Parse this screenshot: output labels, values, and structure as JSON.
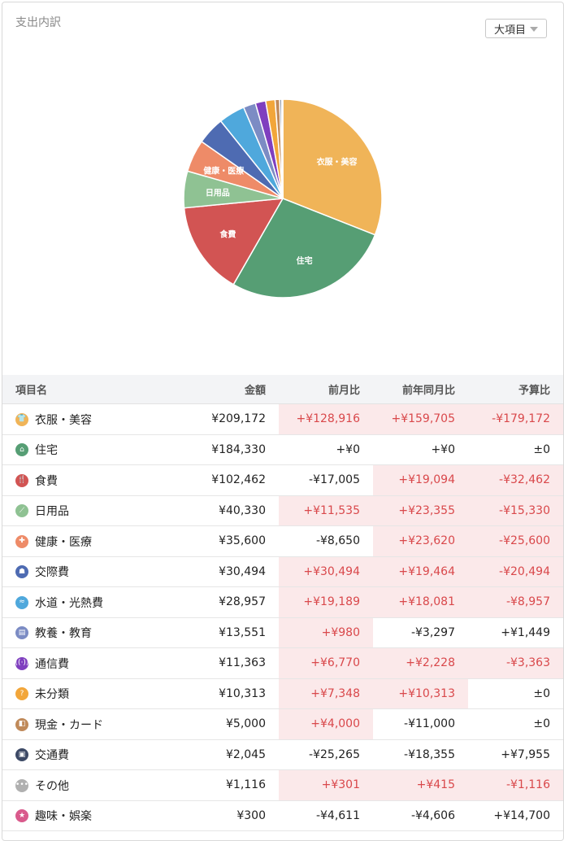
{
  "title": "支出内訳",
  "dropdown": {
    "value": "大項目"
  },
  "chart_data": {
    "type": "pie",
    "slices": [
      {
        "label": "衣服・美容",
        "value": 209172,
        "color": "#f0b458",
        "show_label": true
      },
      {
        "label": "住宅",
        "value": 184330,
        "color": "#569e74",
        "show_label": true
      },
      {
        "label": "食費",
        "value": 102462,
        "color": "#d25453",
        "show_label": true
      },
      {
        "label": "日用品",
        "value": 40330,
        "color": "#8fc293",
        "show_label": true
      },
      {
        "label": "健康・医療",
        "value": 35600,
        "color": "#ee8b68",
        "show_label": true
      },
      {
        "label": "交際費",
        "value": 30494,
        "color": "#4e6bb2",
        "show_label": false
      },
      {
        "label": "水道・光熱費",
        "value": 28957,
        "color": "#4fa8dc",
        "show_label": false
      },
      {
        "label": "教養・教育",
        "value": 13551,
        "color": "#7c8cc4",
        "show_label": false
      },
      {
        "label": "通信費",
        "value": 11363,
        "color": "#7f3fbf",
        "show_label": false
      },
      {
        "label": "未分類",
        "value": 10313,
        "color": "#f2a63a",
        "show_label": false
      },
      {
        "label": "現金・カード",
        "value": 5000,
        "color": "#c08a5a",
        "show_label": false
      },
      {
        "label": "交通費",
        "value": 2045,
        "color": "#3d4a66",
        "show_label": false
      },
      {
        "label": "その他",
        "value": 1116,
        "color": "#b0b0b0",
        "show_label": false
      },
      {
        "label": "趣味・娯楽",
        "value": 300,
        "color": "#d95a8c",
        "show_label": false
      }
    ]
  },
  "table": {
    "headers": {
      "name": "項目名",
      "amount": "金額",
      "mom": "前月比",
      "yoy": "前年同月比",
      "budget": "予算比"
    },
    "rows": [
      {
        "icon": "shirt-icon",
        "glyph": "👕",
        "color": "#f0b458",
        "name": "衣服・美容",
        "amount": "¥209,172",
        "mom": "+¥128,916",
        "mom_neg": true,
        "yoy": "+¥159,705",
        "yoy_neg": true,
        "budget": "-¥179,172",
        "budget_neg": true
      },
      {
        "icon": "house-icon",
        "glyph": "⌂",
        "color": "#569e74",
        "name": "住宅",
        "amount": "¥184,330",
        "mom": "+¥0",
        "mom_neg": false,
        "yoy": "+¥0",
        "yoy_neg": false,
        "budget": "±0",
        "budget_neg": false
      },
      {
        "icon": "fork-knife-icon",
        "glyph": "🍴",
        "color": "#d25453",
        "name": "食費",
        "amount": "¥102,462",
        "mom": "-¥17,005",
        "mom_neg": false,
        "yoy": "+¥19,094",
        "yoy_neg": true,
        "budget": "-¥32,462",
        "budget_neg": true
      },
      {
        "icon": "brush-icon",
        "glyph": "⟋",
        "color": "#8fc293",
        "name": "日用品",
        "amount": "¥40,330",
        "mom": "+¥11,535",
        "mom_neg": true,
        "yoy": "+¥23,355",
        "yoy_neg": true,
        "budget": "-¥15,330",
        "budget_neg": true
      },
      {
        "icon": "medical-cross-icon",
        "glyph": "✚",
        "color": "#ee8b68",
        "name": "健康・医療",
        "amount": "¥35,600",
        "mom": "-¥8,650",
        "mom_neg": false,
        "yoy": "+¥23,620",
        "yoy_neg": true,
        "budget": "-¥25,600",
        "budget_neg": true
      },
      {
        "icon": "people-icon",
        "glyph": "☗",
        "color": "#4e6bb2",
        "name": "交際費",
        "amount": "¥30,494",
        "mom": "+¥30,494",
        "mom_neg": true,
        "yoy": "+¥19,464",
        "yoy_neg": true,
        "budget": "-¥20,494",
        "budget_neg": true
      },
      {
        "icon": "faucet-icon",
        "glyph": "≈",
        "color": "#4fa8dc",
        "name": "水道・光熱費",
        "amount": "¥28,957",
        "mom": "+¥19,189",
        "mom_neg": true,
        "yoy": "+¥18,081",
        "yoy_neg": true,
        "budget": "-¥8,957",
        "budget_neg": true
      },
      {
        "icon": "book-icon",
        "glyph": "▤",
        "color": "#7c8cc4",
        "name": "教養・教育",
        "amount": "¥13,551",
        "mom": "+¥980",
        "mom_neg": true,
        "yoy": "-¥3,297",
        "yoy_neg": false,
        "budget": "+¥1,449",
        "budget_neg": false
      },
      {
        "icon": "signal-icon",
        "glyph": "((·))",
        "color": "#7f3fbf",
        "name": "通信費",
        "amount": "¥11,363",
        "mom": "+¥6,770",
        "mom_neg": true,
        "yoy": "+¥2,228",
        "yoy_neg": true,
        "budget": "-¥3,363",
        "budget_neg": true
      },
      {
        "icon": "question-icon",
        "glyph": "?",
        "color": "#f2a63a",
        "name": "未分類",
        "amount": "¥10,313",
        "mom": "+¥7,348",
        "mom_neg": true,
        "yoy": "+¥10,313",
        "yoy_neg": true,
        "budget": "±0",
        "budget_neg": false
      },
      {
        "icon": "wallet-icon",
        "glyph": "◧",
        "color": "#c08a5a",
        "name": "現金・カード",
        "amount": "¥5,000",
        "mom": "+¥4,000",
        "mom_neg": true,
        "yoy": "-¥11,000",
        "yoy_neg": false,
        "budget": "±0",
        "budget_neg": false
      },
      {
        "icon": "train-icon",
        "glyph": "▣",
        "color": "#3d4a66",
        "name": "交通費",
        "amount": "¥2,045",
        "mom": "-¥25,265",
        "mom_neg": false,
        "yoy": "-¥18,355",
        "yoy_neg": false,
        "budget": "+¥7,955",
        "budget_neg": false
      },
      {
        "icon": "ellipsis-icon",
        "glyph": "•••",
        "color": "#b0b0b0",
        "name": "その他",
        "amount": "¥1,116",
        "mom": "+¥301",
        "mom_neg": true,
        "yoy": "+¥415",
        "yoy_neg": true,
        "budget": "-¥1,116",
        "budget_neg": true
      },
      {
        "icon": "star-icon",
        "glyph": "★",
        "color": "#d95a8c",
        "name": "趣味・娯楽",
        "amount": "¥300",
        "mom": "-¥4,611",
        "mom_neg": false,
        "yoy": "-¥4,606",
        "yoy_neg": false,
        "budget": "+¥14,700",
        "budget_neg": false
      }
    ]
  }
}
